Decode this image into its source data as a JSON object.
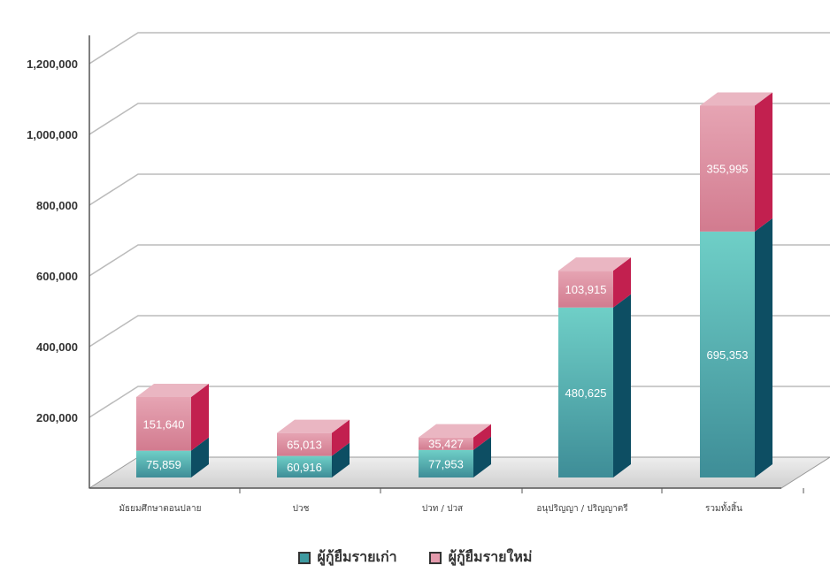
{
  "chart_data": {
    "type": "bar",
    "stacked": true,
    "three_d": true,
    "categories": [
      "มัธยมศึกษาตอนปลาย",
      "ปวช",
      "ปวท / ปวส",
      "อนุปริญญา / ปริญญาตรี",
      "รวมทั้งสิ้น"
    ],
    "series": [
      {
        "name": "ผู้กู้ยืมรายเก่า",
        "values": [
          75859,
          60916,
          77953,
          480625,
          695353
        ],
        "labels": [
          "75,859",
          "60,916",
          "77,953",
          "480,625",
          "695,353"
        ]
      },
      {
        "name": "ผู้กู้ยืมรายใหม่",
        "values": [
          151640,
          65013,
          35427,
          103915,
          355995
        ],
        "labels": [
          "151,640",
          "65,013",
          "35,427",
          "103,915",
          "355,995"
        ]
      }
    ],
    "yticks": [
      "200,000",
      "400,000",
      "600,000",
      "800,000",
      "1,000,000",
      "1,200,000"
    ],
    "ytick_values": [
      200000,
      400000,
      600000,
      800000,
      1000000,
      1200000
    ],
    "ylim": [
      0,
      1200000
    ],
    "grid": true,
    "legend_position": "bottom",
    "colors": {
      "old_front_top": "#6fcfc7",
      "old_front_bottom": "#3e8d97",
      "old_side": "#0d4e63",
      "new_front_top": "#e6a4b3",
      "new_front_bottom": "#d27b8f",
      "new_side": "#c2204f",
      "new_top": "#eab6c2",
      "grid": "#bbbbbb",
      "floor": "#dcdcdc"
    }
  }
}
